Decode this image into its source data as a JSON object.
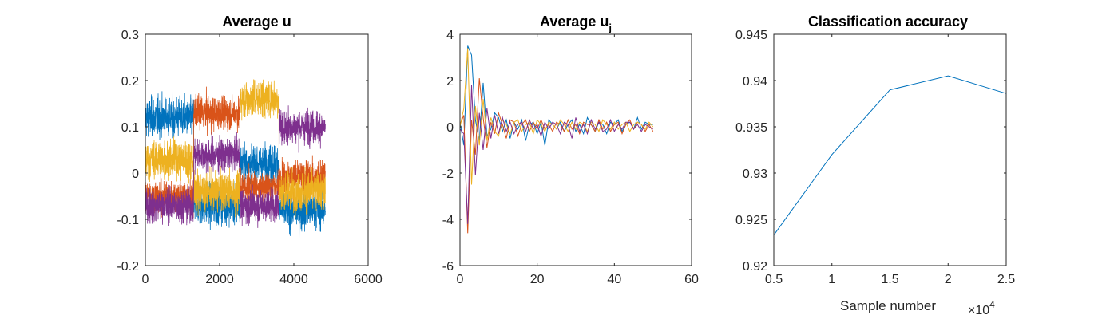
{
  "colors": [
    "#0072BD",
    "#D95319",
    "#EDB120",
    "#7E2F8E"
  ],
  "chart_data": [
    {
      "type": "line",
      "title": "Average u",
      "xlabel": "",
      "ylabel": "",
      "xlim": [
        0,
        6000
      ],
      "ylim": [
        -0.2,
        0.3
      ],
      "xticks": [
        "0",
        "2000",
        "4000",
        "6000"
      ],
      "yticks": [
        "-0.2",
        "-0.1",
        "0",
        "0.1",
        "0.2",
        "0.3"
      ],
      "n_points": 4850,
      "segment_boundaries": [
        0,
        1300,
        2550,
        3600,
        4850
      ],
      "series": [
        {
          "color": "#0072BD",
          "segment_means": [
            0.12,
            -0.07,
            0.02,
            -0.08
          ],
          "noise": 0.035
        },
        {
          "color": "#D95319",
          "segment_means": [
            -0.05,
            0.13,
            -0.03,
            -0.01
          ],
          "noise": 0.03
        },
        {
          "color": "#EDB120",
          "segment_means": [
            0.03,
            -0.04,
            0.16,
            -0.04
          ],
          "noise": 0.035
        },
        {
          "color": "#7E2F8E",
          "segment_means": [
            -0.07,
            0.04,
            -0.07,
            0.1
          ],
          "noise": 0.03
        }
      ]
    },
    {
      "type": "line",
      "title_main": "Average u",
      "title_sub": "j",
      "xlabel": "",
      "ylabel": "",
      "xlim": [
        0,
        60
      ],
      "ylim": [
        -6,
        4
      ],
      "xticks": [
        "0",
        "20",
        "40",
        "60"
      ],
      "yticks": [
        "-6",
        "-4",
        "-2",
        "0",
        "2",
        "4"
      ],
      "x": [
        0,
        1,
        2,
        3,
        4,
        5,
        6,
        7,
        8,
        9,
        10,
        11,
        12,
        13,
        14,
        15,
        16,
        17,
        18,
        19,
        20,
        21,
        22,
        23,
        24,
        25,
        26,
        27,
        28,
        29,
        30,
        31,
        32,
        33,
        34,
        35,
        36,
        37,
        38,
        39,
        40,
        41,
        42,
        43,
        44,
        45,
        46,
        47,
        48,
        49,
        50
      ],
      "series": [
        {
          "color": "#0072BD",
          "values": [
            0.2,
            -0.8,
            3.5,
            3.1,
            0.3,
            -0.6,
            1.9,
            -0.4,
            -0.1,
            0.6,
            0.4,
            -0.2,
            0.3,
            -0.5,
            0.2,
            -0.1,
            0.3,
            -0.6,
            0.1,
            0.2,
            -0.3,
            0.2,
            -0.8,
            0.3,
            0.1,
            -0.1,
            0.2,
            -0.2,
            0.1,
            0.3,
            -0.2,
            0.1,
            -0.3,
            0.4,
            0.1,
            -0.2,
            0.2,
            0.1,
            -0.3,
            0.2,
            0.1,
            0.3,
            -0.2,
            0.1,
            0.2,
            -0.1,
            0.4,
            -0.1,
            0.2,
            0.1,
            0.1
          ]
        },
        {
          "color": "#D95319",
          "values": [
            0.1,
            0.5,
            -4.6,
            0.3,
            -1.2,
            2.1,
            0.4,
            -0.9,
            0.2,
            -0.3,
            0.6,
            0.1,
            -0.5,
            0.3,
            0.2,
            -0.4,
            0.1,
            0.3,
            -0.2,
            0.2,
            -0.1,
            0.3,
            -0.1,
            0.1,
            -0.2,
            0.2,
            0.1,
            -0.2,
            0.3,
            -0.1,
            0.1,
            -0.3,
            0.2,
            0.1,
            0.1,
            -0.2,
            0.3,
            -0.1,
            0.2,
            -0.2,
            0.1,
            0.2,
            -0.3,
            0.1,
            0.3,
            -0.1,
            0.2,
            0.1,
            -0.2,
            0.1,
            -0.2
          ]
        },
        {
          "color": "#EDB120",
          "values": [
            0.0,
            0.8,
            3.4,
            -2.5,
            0.9,
            -0.8,
            1.2,
            -0.6,
            0.4,
            -0.2,
            -0.4,
            0.3,
            0.1,
            -0.3,
            0.2,
            0.3,
            -0.2,
            0.1,
            0.2,
            -0.3,
            0.3,
            0.1,
            -0.2,
            0.2,
            0.1,
            -0.1,
            0.3,
            0.1,
            -0.2,
            0.2,
            -0.1,
            0.2,
            0.1,
            -0.2,
            0.2,
            0.1,
            -0.2,
            0.3,
            0.1,
            -0.1,
            0.2,
            -0.1,
            0.1,
            0.2,
            -0.2,
            0.1,
            0.2,
            0.1,
            -0.1,
            0.2,
            0.0
          ]
        },
        {
          "color": "#7E2F8E",
          "values": [
            -0.1,
            -0.3,
            -4.2,
            1.8,
            -2.1,
            0.6,
            -1.0,
            0.8,
            -0.5,
            0.5,
            -0.3,
            0.4,
            -0.2,
            0.2,
            -0.3,
            0.1,
            0.2,
            -0.2,
            0.3,
            -0.1,
            0.1,
            -0.4,
            0.2,
            -0.1,
            0.2,
            0.1,
            -0.3,
            0.2,
            0.1,
            -0.5,
            0.4,
            -0.2,
            0.1,
            -0.3,
            0.3,
            -0.1,
            0.2,
            -0.2,
            -0.1,
            0.3,
            -0.2,
            0.1,
            -0.1,
            0.2,
            0.2,
            -0.1,
            0.1,
            -0.2,
            0.1,
            0.0,
            -0.1
          ]
        }
      ]
    },
    {
      "type": "line",
      "title": "Classification accuracy",
      "xlabel": "Sample number",
      "ylabel": "",
      "xlim": [
        0.5,
        2.5
      ],
      "ylim": [
        0.92,
        0.945
      ],
      "xticks": [
        "0.5",
        "1",
        "1.5",
        "2",
        "2.5"
      ],
      "yticks": [
        "0.92",
        "0.925",
        "0.93",
        "0.935",
        "0.94",
        "0.945"
      ],
      "x_multiplier_base": "×10",
      "x_multiplier_exp": "4",
      "series": [
        {
          "color": "#0072BD",
          "x": [
            0.5,
            1.0,
            1.5,
            2.0,
            2.5
          ],
          "values": [
            0.9233,
            0.932,
            0.939,
            0.9405,
            0.9386
          ]
        }
      ]
    }
  ]
}
